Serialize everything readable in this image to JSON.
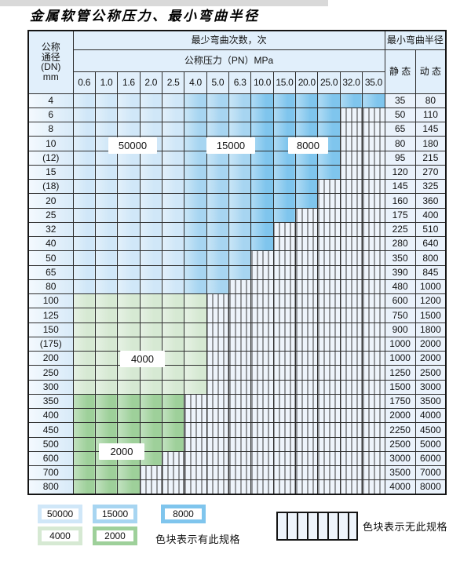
{
  "title": "金属软管公称压力、最小弯曲半径",
  "table": {
    "header": {
      "dn_lines": [
        "公称",
        "通径",
        "(DN)",
        "mm"
      ],
      "bend_cycles": "最少弯曲次数，次",
      "min_bend_radius": "最小弯曲半径",
      "pressure": "公称压力（PN）MPa",
      "static": "静 态",
      "dynamic": "动 态",
      "pressures": [
        "0.6",
        "1.0",
        "1.6",
        "2.0",
        "2.5",
        "4.0",
        "5.0",
        "6.3",
        "10.0",
        "15.0",
        "20.0",
        "25.0",
        "32.0",
        "35.0"
      ]
    },
    "rows": [
      {
        "dn": "4",
        "colored": 14,
        "band": "blue",
        "static": "35",
        "dynamic": "80"
      },
      {
        "dn": "6",
        "colored": 12,
        "band": "blue",
        "static": "50",
        "dynamic": "110"
      },
      {
        "dn": "8",
        "colored": 12,
        "band": "blue",
        "static": "65",
        "dynamic": "145"
      },
      {
        "dn": "10",
        "colored": 12,
        "band": "blue",
        "static": "80",
        "dynamic": "180"
      },
      {
        "dn": "(12)",
        "colored": 12,
        "band": "blue",
        "static": "95",
        "dynamic": "215"
      },
      {
        "dn": "15",
        "colored": 12,
        "band": "blue",
        "static": "120",
        "dynamic": "270"
      },
      {
        "dn": "(18)",
        "colored": 11,
        "band": "blue",
        "static": "145",
        "dynamic": "325"
      },
      {
        "dn": "20",
        "colored": 11,
        "band": "blue",
        "static": "160",
        "dynamic": "360"
      },
      {
        "dn": "25",
        "colored": 10,
        "band": "blue",
        "static": "175",
        "dynamic": "400"
      },
      {
        "dn": "32",
        "colored": 9,
        "band": "blue",
        "static": "225",
        "dynamic": "510"
      },
      {
        "dn": "40",
        "colored": 9,
        "band": "blue",
        "static": "280",
        "dynamic": "640"
      },
      {
        "dn": "50",
        "colored": 8,
        "band": "blue",
        "static": "350",
        "dynamic": "800"
      },
      {
        "dn": "65",
        "colored": 8,
        "band": "blue",
        "static": "390",
        "dynamic": "845"
      },
      {
        "dn": "80",
        "colored": 7,
        "band": "blue",
        "static": "480",
        "dynamic": "1000"
      },
      {
        "dn": "100",
        "colored": 6,
        "band": "green4",
        "static": "600",
        "dynamic": "1200"
      },
      {
        "dn": "125",
        "colored": 6,
        "band": "green4",
        "static": "750",
        "dynamic": "1500"
      },
      {
        "dn": "150",
        "colored": 6,
        "band": "green4",
        "static": "900",
        "dynamic": "1800"
      },
      {
        "dn": "(175)",
        "colored": 6,
        "band": "green4",
        "static": "1000",
        "dynamic": "2000"
      },
      {
        "dn": "200",
        "colored": 6,
        "band": "green4",
        "static": "1000",
        "dynamic": "2000"
      },
      {
        "dn": "250",
        "colored": 6,
        "band": "green4",
        "static": "1250",
        "dynamic": "2500"
      },
      {
        "dn": "300",
        "colored": 6,
        "band": "green4",
        "static": "1500",
        "dynamic": "3000"
      },
      {
        "dn": "350",
        "colored": 5,
        "band": "green2",
        "static": "1750",
        "dynamic": "3500"
      },
      {
        "dn": "400",
        "colored": 5,
        "band": "green2",
        "static": "2000",
        "dynamic": "4000"
      },
      {
        "dn": "450",
        "colored": 5,
        "band": "green2",
        "static": "2250",
        "dynamic": "4500"
      },
      {
        "dn": "500",
        "colored": 5,
        "band": "green2",
        "static": "2500",
        "dynamic": "5000"
      },
      {
        "dn": "600",
        "colored": 4,
        "band": "green2",
        "static": "3000",
        "dynamic": "6000"
      },
      {
        "dn": "700",
        "colored": 3,
        "band": "green2",
        "static": "3500",
        "dynamic": "7000"
      },
      {
        "dn": "800",
        "colored": 3,
        "band": "green2",
        "static": "4000",
        "dynamic": "8000"
      }
    ],
    "blue_band_split": {
      "cycles_50000_cols": 5,
      "cycles_15000_cols": 3,
      "cycles_8000_cols": 6
    }
  },
  "cycle_labels": {
    "c50000": "50000",
    "c15000": "15000",
    "c8000": "8000",
    "c4000": "4000",
    "c2000": "2000"
  },
  "legend": {
    "items": [
      {
        "label": "50000",
        "color": "#d0e7f8"
      },
      {
        "label": "15000",
        "color": "#a7d5f1"
      },
      {
        "label": "8000",
        "color": "#7fc5ed"
      },
      {
        "label": "4000",
        "color": "#d6e9d3"
      },
      {
        "label": "2000",
        "color": "#9ed09a"
      }
    ],
    "has_spec_note": "色块表示有此规格",
    "no_spec_note": "色块表示无此规格"
  },
  "colors": {
    "cycles_50000": "#d0e7f8",
    "cycles_15000": "#a7d5f1",
    "cycles_8000": "#7fc5ed",
    "cycles_4000": "#d6e9d3",
    "cycles_2000": "#9ed09a",
    "no_spec_bg": "#eef4fb",
    "grid_line": "#2e2e2e",
    "header_bg": "#e1effb",
    "value_cell_bg": "#eaf2fb"
  }
}
